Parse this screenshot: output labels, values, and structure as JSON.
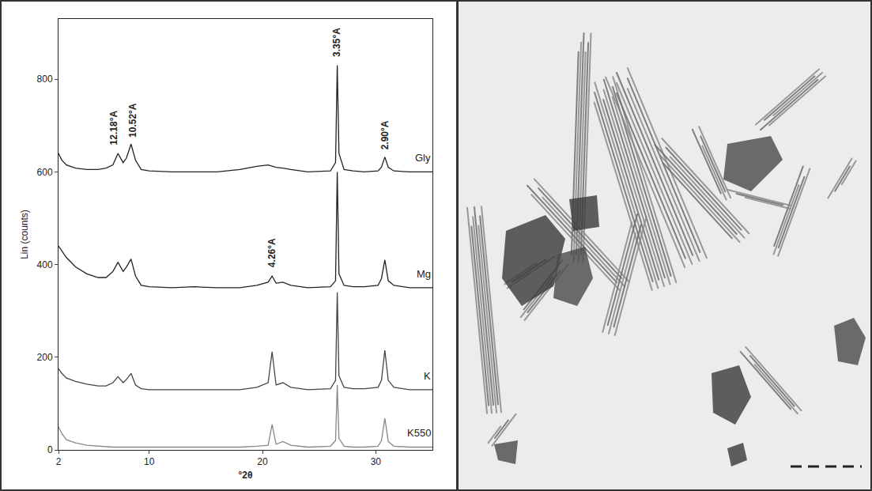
{
  "chart_data": {
    "type": "line",
    "x_label": "°2θ",
    "y_label": "Lin (counts)",
    "xlim": [
      2,
      35
    ],
    "xticks": [
      2,
      10,
      20,
      30
    ],
    "ylim": [
      0,
      930
    ],
    "yticks": [
      0,
      200,
      400,
      600,
      800
    ],
    "grid": false,
    "x": [
      2,
      2.3,
      2.7,
      3.5,
      4.5,
      5.5,
      6.2,
      6.8,
      7.25,
      7.7,
      8.0,
      8.4,
      8.8,
      9.3,
      10,
      12,
      14,
      16,
      18,
      19.5,
      20.5,
      20.85,
      21.2,
      21.8,
      22.5,
      24,
      26,
      26.45,
      26.6,
      26.75,
      27.2,
      28,
      29,
      30.2,
      30.5,
      30.8,
      31.1,
      31.6,
      33,
      35
    ],
    "series": [
      {
        "name": "Gly",
        "color": "#222222",
        "values": [
          640,
          625,
          615,
          608,
          605,
          605,
          608,
          615,
          640,
          620,
          630,
          660,
          625,
          605,
          602,
          600,
          600,
          600,
          605,
          612,
          615,
          612,
          610,
          608,
          605,
          600,
          602,
          620,
          830,
          640,
          605,
          602,
          600,
          602,
          610,
          632,
          610,
          602,
          600,
          600
        ]
      },
      {
        "name": "Mg",
        "color": "#222222",
        "values": [
          440,
          430,
          415,
          395,
          380,
          372,
          372,
          385,
          405,
          385,
          395,
          412,
          375,
          355,
          352,
          350,
          352,
          350,
          350,
          355,
          362,
          375,
          360,
          362,
          355,
          350,
          352,
          365,
          600,
          380,
          355,
          352,
          352,
          355,
          370,
          410,
          365,
          355,
          350,
          350
        ]
      },
      {
        "name": "K",
        "color": "#444444",
        "values": [
          175,
          165,
          155,
          148,
          142,
          138,
          138,
          145,
          158,
          145,
          152,
          165,
          140,
          132,
          130,
          130,
          130,
          130,
          130,
          135,
          145,
          212,
          140,
          145,
          135,
          130,
          132,
          150,
          340,
          160,
          135,
          132,
          132,
          135,
          150,
          215,
          150,
          135,
          130,
          130
        ]
      },
      {
        "name": "K550",
        "color": "#888888",
        "values": [
          50,
          35,
          22,
          15,
          10,
          8,
          7,
          6,
          6,
          6,
          6,
          6,
          6,
          6,
          6,
          6,
          6,
          6,
          6,
          8,
          10,
          55,
          12,
          18,
          10,
          6,
          8,
          20,
          140,
          25,
          8,
          6,
          6,
          8,
          20,
          68,
          18,
          8,
          6,
          6
        ]
      }
    ],
    "annotations": [
      {
        "text": "12.18°A",
        "x": 6.9,
        "y": 655
      },
      {
        "text": "10.52°A",
        "x": 8.6,
        "y": 670
      },
      {
        "text": "3.35°A",
        "x": 26.6,
        "y": 845
      },
      {
        "text": "2.90°A",
        "x": 30.8,
        "y": 645
      },
      {
        "text": "4.26°A",
        "x": 20.85,
        "y": 390
      }
    ]
  }
}
